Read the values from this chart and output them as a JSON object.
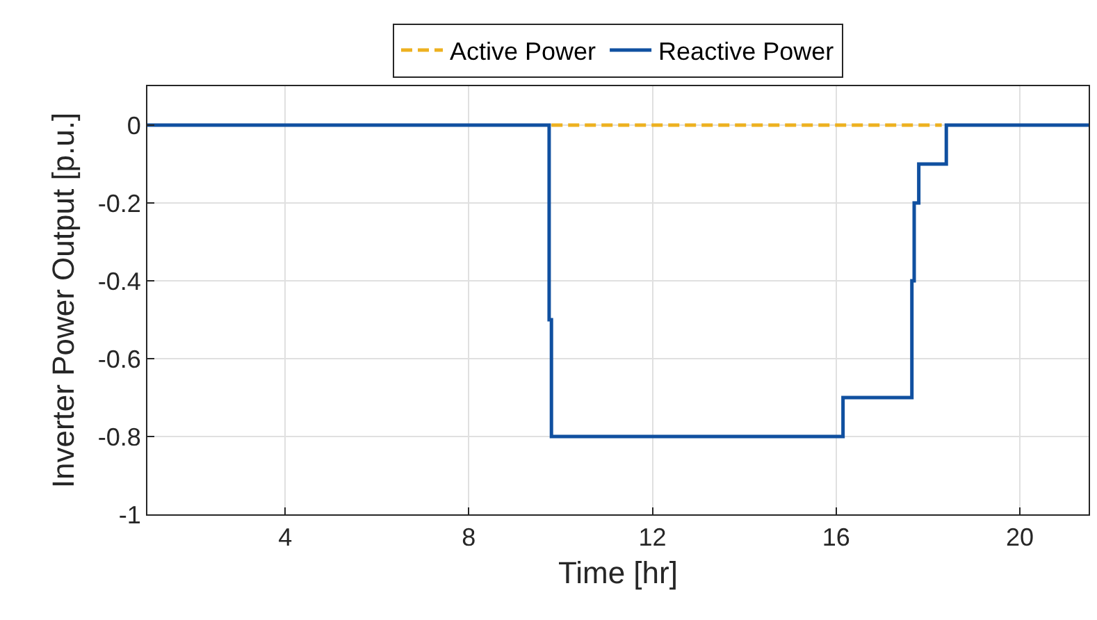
{
  "chart_data": {
    "type": "step",
    "xlabel": "Time [hr]",
    "ylabel": "Inverter Power Output [p.u.]",
    "series": [
      {
        "name": "Active Power",
        "color": "#edb120",
        "line_style": "dashed",
        "x": [
          9.8,
          18.3
        ],
        "values": [
          0,
          0
        ]
      },
      {
        "name": "Reactive Power",
        "color": "#1050a0",
        "line_style": "solid",
        "x": [
          1,
          9.75,
          9.8,
          16.15,
          17.65,
          17.7,
          17.8,
          18.4,
          21.5
        ],
        "values": [
          0,
          -0.5,
          -0.8,
          -0.7,
          -0.4,
          -0.2,
          -0.1,
          0,
          0
        ]
      }
    ],
    "xlim": [
      1,
      21.5
    ],
    "xticks": [
      4,
      8,
      12,
      16,
      20
    ],
    "ylim": [
      -1,
      0.1
    ],
    "yticks": [
      -1,
      -0.8,
      -0.6,
      -0.4,
      -0.2,
      0
    ],
    "grid": true,
    "legend": "top"
  }
}
